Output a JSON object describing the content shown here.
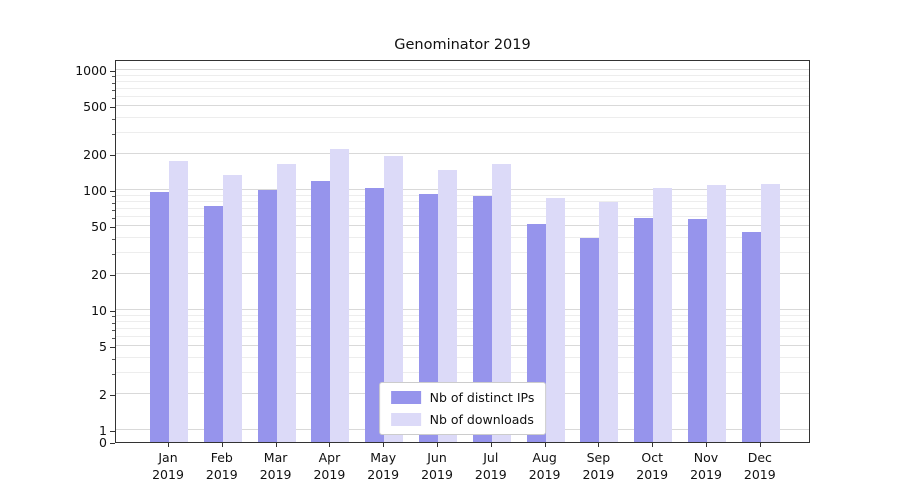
{
  "chart_data": {
    "type": "bar",
    "title": "Genominator 2019",
    "categories": [
      "Jan",
      "Feb",
      "Mar",
      "Apr",
      "May",
      "Jun",
      "Jul",
      "Aug",
      "Sep",
      "Oct",
      "Nov",
      "Dec"
    ],
    "year": "2019",
    "series": [
      {
        "name": "Nb of distinct IPs",
        "color": "#9694ec",
        "values": [
          97,
          73,
          100,
          120,
          104,
          92,
          89,
          52,
          40,
          58,
          57,
          45
        ]
      },
      {
        "name": "Nb of downloads",
        "color": "#dcdaf8",
        "values": [
          174,
          134,
          166,
          220,
          193,
          146,
          166,
          86,
          79,
          104,
          110,
          112
        ]
      }
    ],
    "yscale": "symlog",
    "yticks": [
      0,
      1,
      2,
      5,
      10,
      20,
      50,
      100,
      200,
      500,
      1000
    ],
    "ylim": [
      0,
      1235
    ],
    "xlabel": "",
    "ylabel": "",
    "grid": "horizontal",
    "legend_position": "lower center"
  }
}
